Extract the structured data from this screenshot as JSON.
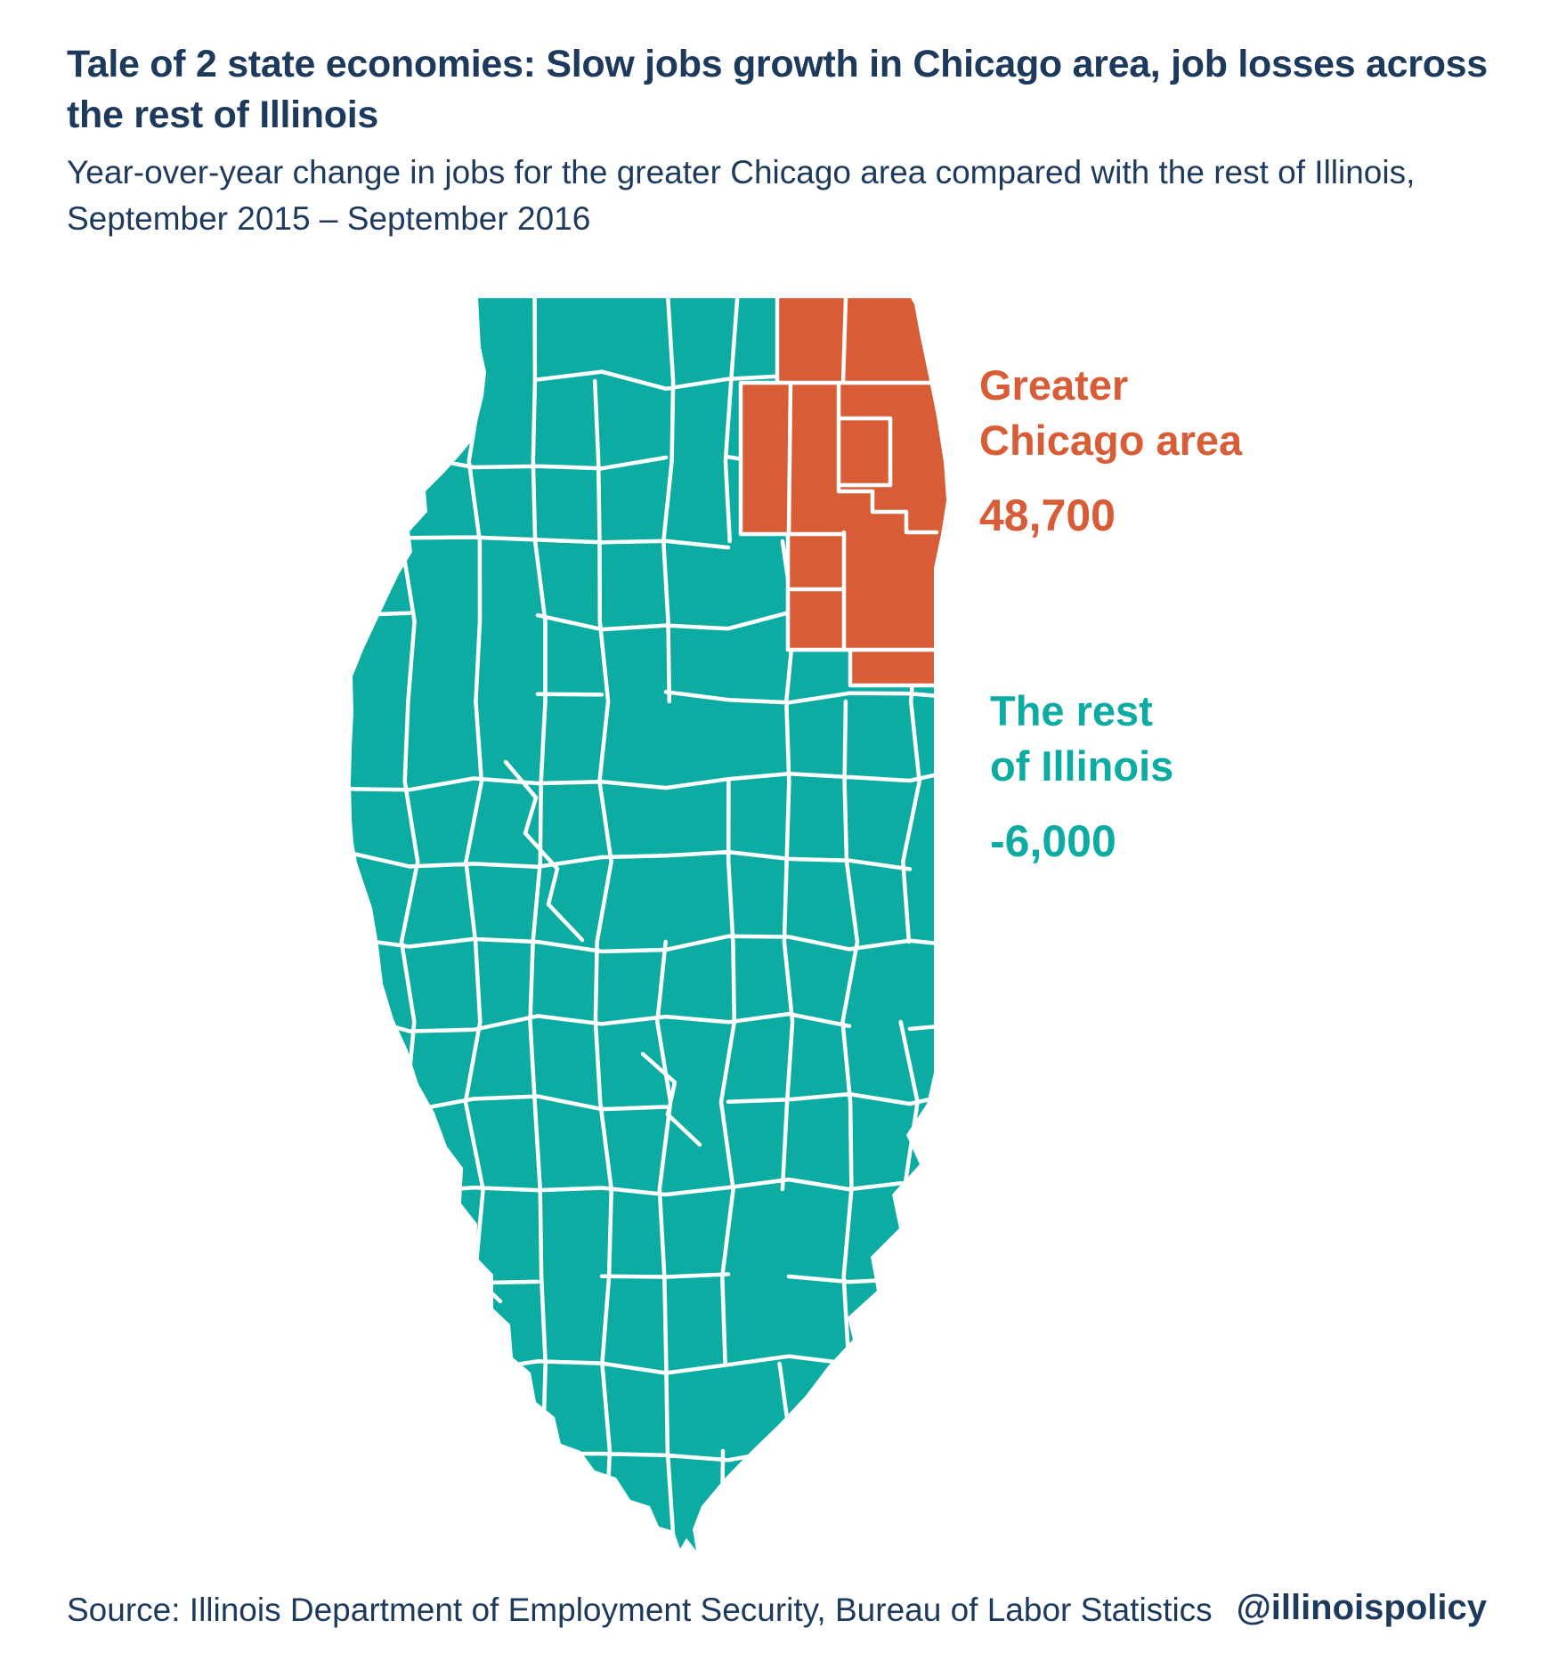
{
  "header": {
    "title_line1": "Tale of 2 state economies: Slow jobs growth in Chicago area, job losses across",
    "title_line2": "the rest of Illinois",
    "subtitle_line1": "Year-over-year change in jobs for the greater Chicago area compared with the rest of Illinois,",
    "subtitle_line2": "September 2015 – September 2016"
  },
  "annotations": {
    "chicago": {
      "line1": "Greater",
      "line2": "Chicago area",
      "value": "48,700"
    },
    "rest": {
      "line1": "The rest",
      "line2": "of Illinois",
      "value": "-6,000"
    }
  },
  "footer": {
    "source": "Source: Illinois Department of Employment Security, Bureau of Labor Statistics",
    "handle": "@illinoispolicy"
  },
  "colors": {
    "navy": "#1d3a5c",
    "teal": "#0caca2",
    "orange": "#d85c35",
    "county_border": "#ffffff"
  },
  "chart_data": {
    "type": "choropleth",
    "geography": "Illinois counties",
    "title": "Tale of 2 state economies: Slow jobs growth in Chicago area, job losses across the rest of Illinois",
    "subtitle": "Year-over-year change in jobs for the greater Chicago area compared with the rest of Illinois, September 2015 – September 2016",
    "metric": "Year-over-year change in jobs",
    "period": "September 2015 – September 2016",
    "regions": [
      {
        "name": "Greater Chicago area",
        "value": 48700,
        "display_value": "48,700",
        "color": "#d85c35"
      },
      {
        "name": "The rest of Illinois",
        "value": -6000,
        "display_value": "-6,000",
        "color": "#0caca2"
      }
    ],
    "legend_position": "right of map",
    "source": "Illinois Department of Employment Security, Bureau of Labor Statistics"
  }
}
